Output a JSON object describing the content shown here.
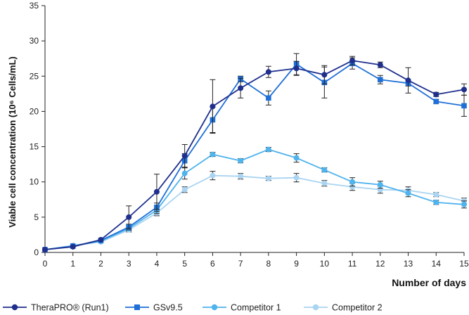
{
  "chart_data": {
    "type": "line",
    "xlabel": "Number of days",
    "ylabel": "Viable cell concentration (10⁶ Cells/mL)",
    "x": [
      0,
      1,
      2,
      3,
      4,
      5,
      6,
      7,
      8,
      9,
      10,
      11,
      12,
      13,
      14,
      15
    ],
    "xlim": [
      0,
      15
    ],
    "ylim": [
      0,
      35
    ],
    "yticks": [
      0,
      5,
      10,
      15,
      20,
      25,
      30,
      35
    ],
    "grid": false,
    "legend_position": "bottom",
    "series": [
      {
        "name": "TheraPRO® (Run1)",
        "color": "#1f2f8c",
        "marker": "circle",
        "values": [
          0.4,
          0.8,
          1.8,
          5.0,
          8.6,
          13.7,
          20.7,
          23.3,
          25.6,
          26.1,
          25.2,
          27.2,
          26.6,
          24.4,
          22.4,
          23.1
        ],
        "errors": [
          0.2,
          0.2,
          0.2,
          1.6,
          2.5,
          1.6,
          3.8,
          1.4,
          0.8,
          1.0,
          1.3,
          0.6,
          0.4,
          1.8,
          0.3,
          0.8
        ]
      },
      {
        "name": "GSv9.5",
        "color": "#1f6fd6",
        "marker": "square",
        "values": [
          0.4,
          0.9,
          1.7,
          3.6,
          6.4,
          13.0,
          18.8,
          24.6,
          21.9,
          26.7,
          24.1,
          26.8,
          24.5,
          24.0,
          21.4,
          20.8
        ],
        "errors": [
          0.2,
          0.2,
          0.2,
          0.4,
          0.6,
          1.0,
          1.8,
          0.4,
          1.0,
          1.5,
          2.2,
          0.8,
          0.6,
          0.4,
          0.3,
          1.5
        ]
      },
      {
        "name": "Competitor 1",
        "color": "#4fb3ec",
        "marker": "circle",
        "values": [
          0.4,
          0.9,
          1.6,
          3.4,
          6.0,
          11.2,
          13.9,
          13.0,
          14.6,
          13.4,
          11.7,
          10.0,
          9.6,
          8.4,
          7.1,
          6.8
        ],
        "errors": [
          0.2,
          0.2,
          0.2,
          0.3,
          0.5,
          0.8,
          0.3,
          0.3,
          0.3,
          0.6,
          0.3,
          0.6,
          0.5,
          0.5,
          0.3,
          0.5
        ]
      },
      {
        "name": "Competitor 2",
        "color": "#a9d4f2",
        "marker": "circle",
        "values": [
          0.4,
          1.0,
          1.5,
          3.2,
          5.6,
          8.9,
          10.9,
          10.8,
          10.5,
          10.6,
          9.8,
          9.3,
          8.9,
          8.8,
          8.2,
          7.3
        ],
        "errors": [
          0.2,
          0.2,
          0.2,
          0.3,
          0.4,
          0.4,
          0.6,
          0.4,
          0.3,
          0.6,
          0.4,
          0.5,
          0.5,
          0.5,
          0.3,
          0.4
        ]
      }
    ]
  }
}
